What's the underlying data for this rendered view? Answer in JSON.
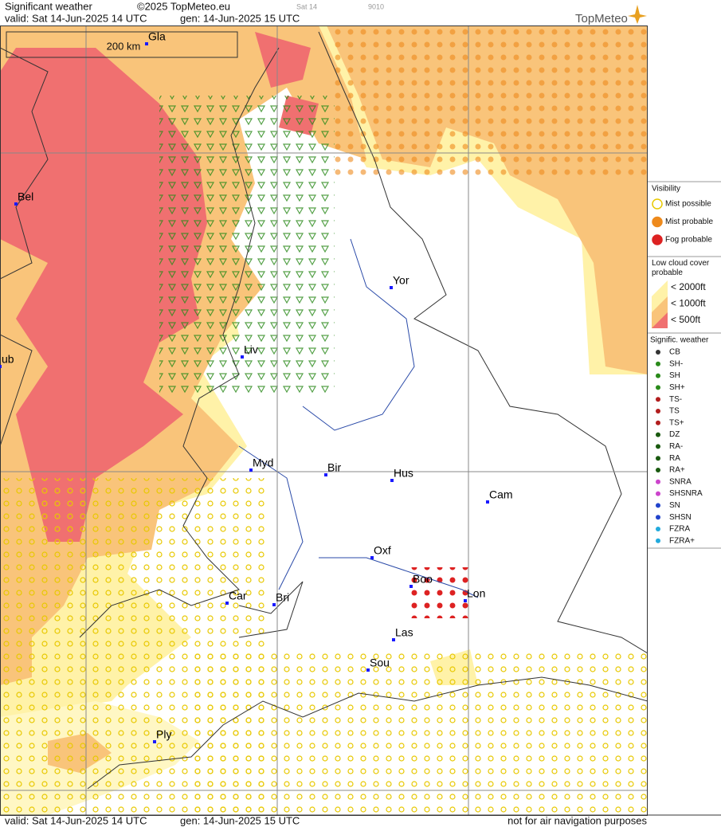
{
  "header": {
    "title": "Significant weather",
    "copyright": "©2025 TopMeteo.eu",
    "valid": "valid:  Sat  14-Jun-2025  14 UTC",
    "gen": "gen: 14-Jun-2025 15 UTC",
    "day": "Sat 14",
    "code": "9010",
    "brand": "TopMeteo"
  },
  "map": {
    "scale": "200 km",
    "cities": [
      "Gla",
      "Bel",
      "ub",
      "Yor",
      "Liv",
      "Myd",
      "Bir",
      "Hus",
      "Cam",
      "Oxf",
      "Boo",
      "Lon",
      "Car",
      "Bri",
      "Las",
      "Sou",
      "Ply"
    ]
  },
  "legend": {
    "visibility": {
      "title": "Visibility",
      "items": [
        "Mist possible",
        "Mist probable",
        "Fog probable"
      ]
    },
    "low_cloud": {
      "title": "Low cloud cover probable",
      "items": [
        "< 2000ft",
        "< 1000ft",
        "<  500ft"
      ]
    },
    "weather": {
      "title": "Signific. weather",
      "items": [
        "CB",
        "SH-",
        "SH",
        "SH+",
        "TS-",
        "TS",
        "TS+",
        "DZ",
        "RA-",
        "RA",
        "RA+",
        "SNRA",
        "SHSNRA",
        "SN",
        "SHSN",
        "FZRA",
        "FZRA+"
      ]
    }
  },
  "footer": {
    "valid": "valid:  Sat  14-Jun-2025  14 UTC",
    "gen": "gen: 14-Jun-2025 15 UTC",
    "note": "not for air navigation purposes"
  }
}
